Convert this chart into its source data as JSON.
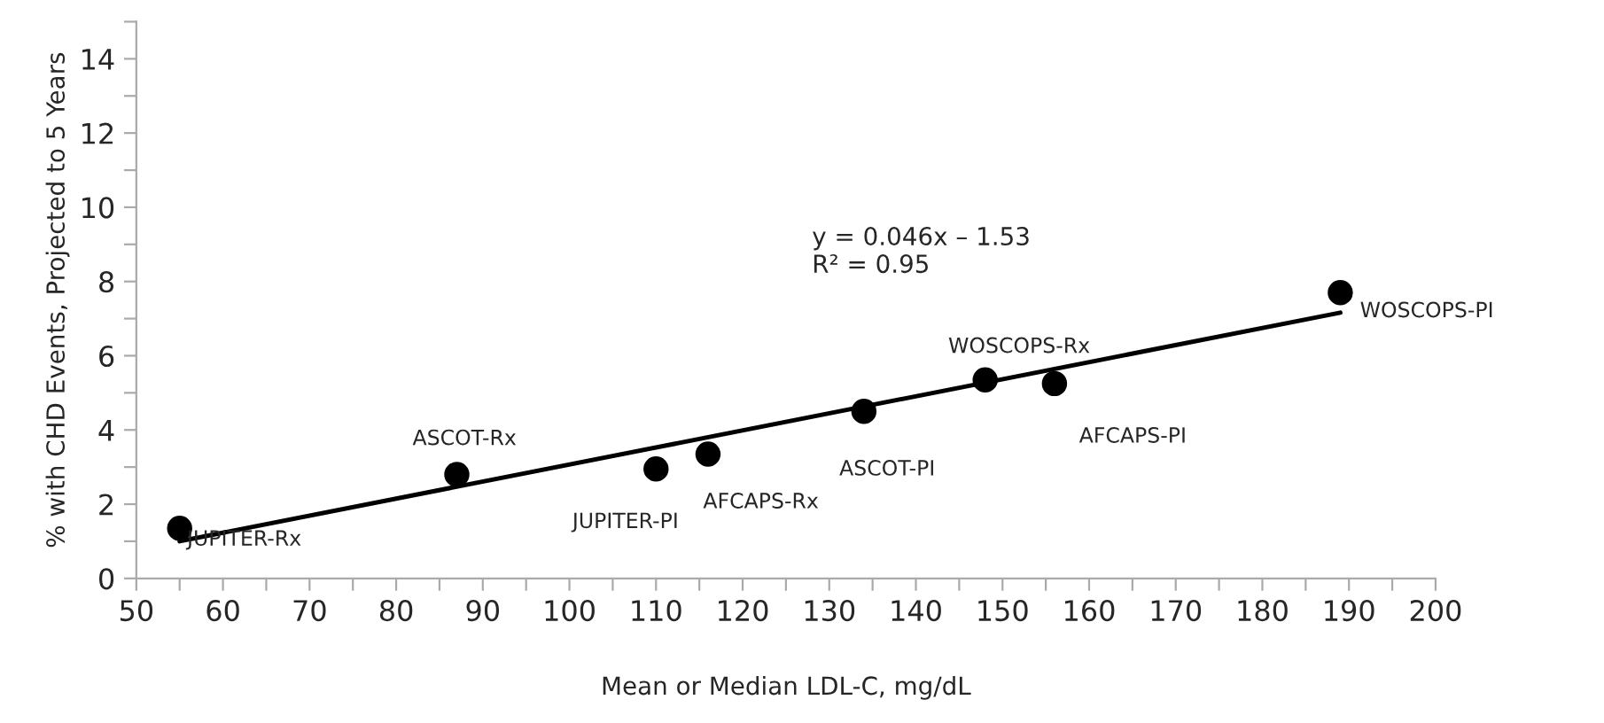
{
  "chart_data": {
    "type": "scatter",
    "xlabel": "Mean or Median LDL-C, mg/dL",
    "ylabel": "% with CHD Events, Projected to 5 Years",
    "series": [
      {
        "color": "#000000",
        "marker": "circle",
        "x": [
          55,
          87,
          110,
          116,
          134,
          148,
          156,
          189
        ],
        "values": [
          1.35,
          2.8,
          2.95,
          3.35,
          4.5,
          5.35,
          5.25,
          7.7
        ]
      },
      {
        "type": "line",
        "color": "#000000",
        "line_style": "solid",
        "x": [
          55,
          189
        ],
        "values": [
          1.0,
          7.16
        ]
      }
    ],
    "annotations": [
      {
        "text": "JUPITER-Rx",
        "x": 55,
        "y": 1.35
      },
      {
        "text": "ASCOT-Rx",
        "x": 87,
        "y": 2.8
      },
      {
        "text": "JUPITER-PI",
        "x": 110,
        "y": 2.95
      },
      {
        "text": "AFCAPS-Rx",
        "x": 116,
        "y": 3.35
      },
      {
        "text": "ASCOT-PI",
        "x": 134,
        "y": 4.5
      },
      {
        "text": "WOSCOPS-Rx",
        "x": 148,
        "y": 5.35
      },
      {
        "text": "AFCAPS-PI",
        "x": 156,
        "y": 5.25
      },
      {
        "text": "WOSCOPS-PI",
        "x": 189,
        "y": 7.7
      },
      "y = 0.046x – 1.53\nR² = 0.95"
    ],
    "xlim": [
      50,
      200
    ],
    "xticks": [
      50,
      {
        "value": 55,
        "label": null
      },
      60,
      {
        "value": 65,
        "label": null
      },
      70,
      {
        "value": 75,
        "label": null
      },
      80,
      {
        "value": 85,
        "label": null
      },
      90,
      {
        "value": 95,
        "label": null
      },
      100,
      {
        "value": 105,
        "label": null
      },
      110,
      {
        "value": 115,
        "label": null
      },
      120,
      {
        "value": 125,
        "label": null
      },
      130,
      {
        "value": 135,
        "label": null
      },
      140,
      {
        "value": 145,
        "label": null
      },
      150,
      {
        "value": 155,
        "label": null
      },
      160,
      {
        "value": 165,
        "label": null
      },
      170,
      {
        "value": 175,
        "label": null
      },
      180,
      {
        "value": 185,
        "label": null
      },
      190,
      {
        "value": 195,
        "label": null
      },
      200
    ],
    "ylim": [
      0,
      15
    ],
    "yticks": [
      0,
      {
        "value": 1,
        "label": null
      },
      2,
      {
        "value": 3,
        "label": null
      },
      4,
      {
        "value": 5,
        "label": null
      },
      6,
      {
        "value": 7,
        "label": null
      },
      8,
      {
        "value": 9,
        "label": null
      },
      10,
      {
        "value": 11,
        "label": null
      },
      12,
      {
        "value": 13,
        "label": null
      },
      14,
      {
        "value": 15,
        "label": null
      }
    ],
    "grid": false
  }
}
